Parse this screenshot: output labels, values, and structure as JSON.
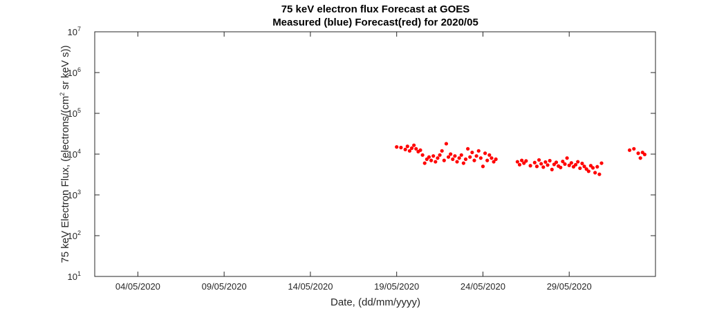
{
  "chart_data": {
    "type": "scatter",
    "title": "75 keV electron flux Forecast at GOES",
    "subtitle": "Measured (blue) Forecast(red) for 2020/05",
    "xlabel": "Date, (dd/mm/yyyy)",
    "ylabel_prefix": "75 keV Electron Flux, (electrons/(cm",
    "ylabel_sup": "2",
    "ylabel_suffix": " sr keV s))",
    "y_scale": "log",
    "ylim": [
      10,
      10000000
    ],
    "xlim": [
      "2020-05-01 12:00",
      "2020-06-03"
    ],
    "grid": false,
    "x_ticks": [
      {
        "date": "2020-05-04",
        "label": "04/05/2020"
      },
      {
        "date": "2020-05-09",
        "label": "09/05/2020"
      },
      {
        "date": "2020-05-14",
        "label": "14/05/2020"
      },
      {
        "date": "2020-05-19",
        "label": "19/05/2020"
      },
      {
        "date": "2020-05-24",
        "label": "24/05/2020"
      },
      {
        "date": "2020-05-29",
        "label": "29/05/2020"
      }
    ],
    "y_ticks": [
      {
        "value": 10,
        "base": "10",
        "exp": "1"
      },
      {
        "value": 100,
        "base": "10",
        "exp": "2"
      },
      {
        "value": 1000,
        "base": "10",
        "exp": "3"
      },
      {
        "value": 10000,
        "base": "10",
        "exp": "4"
      },
      {
        "value": 100000,
        "base": "10",
        "exp": "5"
      },
      {
        "value": 1000000,
        "base": "10",
        "exp": "6"
      },
      {
        "value": 10000000,
        "base": "10",
        "exp": "7"
      }
    ],
    "series": [
      {
        "color": "#ff0000",
        "points": [
          [
            "2020-05-19 00:00",
            15000
          ],
          [
            "2020-05-19 06:00",
            14500
          ],
          [
            "2020-05-19 12:00",
            13000
          ],
          [
            "2020-05-19 15:00",
            15500
          ],
          [
            "2020-05-19 18:00",
            12000
          ],
          [
            "2020-05-19 21:00",
            14000
          ],
          [
            "2020-05-20 00:00",
            16500
          ],
          [
            "2020-05-20 03:00",
            13500
          ],
          [
            "2020-05-20 06:00",
            11500
          ],
          [
            "2020-05-20 09:00",
            12500
          ],
          [
            "2020-05-20 12:00",
            9500
          ],
          [
            "2020-05-20 15:00",
            6000
          ],
          [
            "2020-05-20 18:00",
            7500
          ],
          [
            "2020-05-20 21:00",
            8500
          ],
          [
            "2020-05-21 00:00",
            7000
          ],
          [
            "2020-05-21 03:00",
            9000
          ],
          [
            "2020-05-21 06:00",
            6500
          ],
          [
            "2020-05-21 09:00",
            8000
          ],
          [
            "2020-05-21 12:00",
            9500
          ],
          [
            "2020-05-21 15:00",
            12000
          ],
          [
            "2020-05-21 18:00",
            7000
          ],
          [
            "2020-05-21 21:00",
            18000
          ],
          [
            "2020-05-22 00:00",
            8500
          ],
          [
            "2020-05-22 03:00",
            10000
          ],
          [
            "2020-05-22 06:00",
            7500
          ],
          [
            "2020-05-22 09:00",
            9000
          ],
          [
            "2020-05-22 12:00",
            6500
          ],
          [
            "2020-05-22 15:00",
            8000
          ],
          [
            "2020-05-22 18:00",
            9500
          ],
          [
            "2020-05-22 21:00",
            6000
          ],
          [
            "2020-05-23 00:00",
            7500
          ],
          [
            "2020-05-23 03:00",
            13500
          ],
          [
            "2020-05-23 06:00",
            8500
          ],
          [
            "2020-05-23 09:00",
            11000
          ],
          [
            "2020-05-23 12:00",
            7000
          ],
          [
            "2020-05-23 15:00",
            9000
          ],
          [
            "2020-05-23 18:00",
            12000
          ],
          [
            "2020-05-23 21:00",
            8000
          ],
          [
            "2020-05-24 00:00",
            5000
          ],
          [
            "2020-05-24 03:00",
            10500
          ],
          [
            "2020-05-24 06:00",
            7000
          ],
          [
            "2020-05-24 09:00",
            9500
          ],
          [
            "2020-05-24 12:00",
            8000
          ],
          [
            "2020-05-24 15:00",
            6500
          ],
          [
            "2020-05-24 18:00",
            7500
          ],
          [
            "2020-05-26 00:00",
            6500
          ],
          [
            "2020-05-26 03:00",
            5500
          ],
          [
            "2020-05-26 06:00",
            7000
          ],
          [
            "2020-05-26 09:00",
            6000
          ],
          [
            "2020-05-26 12:00",
            6800
          ],
          [
            "2020-05-26 18:00",
            5200
          ],
          [
            "2020-05-27 00:00",
            6200
          ],
          [
            "2020-05-27 03:00",
            5000
          ],
          [
            "2020-05-27 06:00",
            7200
          ],
          [
            "2020-05-27 09:00",
            5800
          ],
          [
            "2020-05-27 12:00",
            4800
          ],
          [
            "2020-05-27 15:00",
            6400
          ],
          [
            "2020-05-27 18:00",
            5400
          ],
          [
            "2020-05-27 21:00",
            6900
          ],
          [
            "2020-05-28 00:00",
            4200
          ],
          [
            "2020-05-28 03:00",
            5600
          ],
          [
            "2020-05-28 06:00",
            6300
          ],
          [
            "2020-05-28 09:00",
            5100
          ],
          [
            "2020-05-28 12:00",
            4700
          ],
          [
            "2020-05-28 15:00",
            6600
          ],
          [
            "2020-05-28 18:00",
            5700
          ],
          [
            "2020-05-28 21:00",
            8000
          ],
          [
            "2020-05-29 00:00",
            5300
          ],
          [
            "2020-05-29 03:00",
            6100
          ],
          [
            "2020-05-29 06:00",
            4900
          ],
          [
            "2020-05-29 09:00",
            5500
          ],
          [
            "2020-05-29 12:00",
            6500
          ],
          [
            "2020-05-29 15:00",
            4500
          ],
          [
            "2020-05-29 18:00",
            5900
          ],
          [
            "2020-05-29 21:00",
            5000
          ],
          [
            "2020-05-30 00:00",
            4300
          ],
          [
            "2020-05-30 03:00",
            3800
          ],
          [
            "2020-05-30 06:00",
            5200
          ],
          [
            "2020-05-30 09:00",
            4600
          ],
          [
            "2020-05-30 12:00",
            3500
          ],
          [
            "2020-05-30 15:00",
            4900
          ],
          [
            "2020-05-30 18:00",
            3200
          ],
          [
            "2020-05-30 21:00",
            6000
          ],
          [
            "2020-06-01 12:00",
            12500
          ],
          [
            "2020-06-01 18:00",
            13500
          ],
          [
            "2020-06-02 00:00",
            10500
          ],
          [
            "2020-06-02 03:00",
            8000
          ],
          [
            "2020-06-02 06:00",
            11000
          ],
          [
            "2020-06-02 09:00",
            9800
          ]
        ]
      }
    ]
  }
}
